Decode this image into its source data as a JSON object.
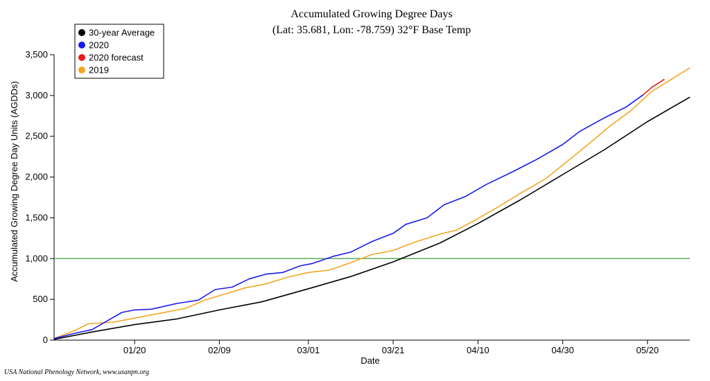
{
  "chart_data": {
    "type": "line",
    "title": "Accumulated Growing Degree Days",
    "subtitle": "(Lat: 35.681, Lon: -78.759) 32°F Base Temp",
    "xlabel": "Date",
    "ylabel": "Accumulated Growing Degree Day Units (AGDDs)",
    "x_range": [
      "2020-01-01",
      "2020-05-30"
    ],
    "ylim": [
      0,
      3500
    ],
    "y_ticks": [
      0,
      500,
      1000,
      1500,
      2000,
      2500,
      3000,
      3500
    ],
    "y_tick_labels": [
      "0",
      "500",
      "1,000",
      "1,500",
      "2,000",
      "2,500",
      "3,000",
      "3,500"
    ],
    "x_ticks": [
      "2020-01-20",
      "2020-02-09",
      "2020-03-01",
      "2020-03-21",
      "2020-04-10",
      "2020-04-30",
      "2020-05-20"
    ],
    "x_tick_labels": [
      "01/20",
      "02/09",
      "03/01",
      "03/21",
      "04/10",
      "04/30",
      "05/20"
    ],
    "threshold_line": {
      "y": 1000,
      "color": "#5cad5c"
    },
    "legend_position": "top-left",
    "series": [
      {
        "name": "30-year Average",
        "color": "#000000",
        "points": [
          [
            "2020-01-01",
            10
          ],
          [
            "2020-01-10",
            100
          ],
          [
            "2020-01-20",
            190
          ],
          [
            "2020-01-30",
            260
          ],
          [
            "2020-02-09",
            370
          ],
          [
            "2020-02-19",
            470
          ],
          [
            "2020-03-01",
            630
          ],
          [
            "2020-03-11",
            780
          ],
          [
            "2020-03-21",
            960
          ],
          [
            "2020-04-01",
            1190
          ],
          [
            "2020-04-10",
            1430
          ],
          [
            "2020-04-20",
            1720
          ],
          [
            "2020-04-30",
            2030
          ],
          [
            "2020-05-10",
            2340
          ],
          [
            "2020-05-20",
            2680
          ],
          [
            "2020-05-30",
            2980
          ]
        ]
      },
      {
        "name": "2020",
        "color": "#1a1af0",
        "points": [
          [
            "2020-01-01",
            20
          ],
          [
            "2020-01-06",
            85
          ],
          [
            "2020-01-10",
            130
          ],
          [
            "2020-01-13",
            220
          ],
          [
            "2020-01-17",
            340
          ],
          [
            "2020-01-20",
            370
          ],
          [
            "2020-01-24",
            380
          ],
          [
            "2020-01-30",
            450
          ],
          [
            "2020-02-04",
            490
          ],
          [
            "2020-02-08",
            620
          ],
          [
            "2020-02-12",
            650
          ],
          [
            "2020-02-16",
            750
          ],
          [
            "2020-02-20",
            810
          ],
          [
            "2020-02-24",
            830
          ],
          [
            "2020-02-28",
            910
          ],
          [
            "2020-03-02",
            940
          ],
          [
            "2020-03-07",
            1030
          ],
          [
            "2020-03-11",
            1080
          ],
          [
            "2020-03-16",
            1210
          ],
          [
            "2020-03-21",
            1310
          ],
          [
            "2020-03-24",
            1420
          ],
          [
            "2020-03-29",
            1500
          ],
          [
            "2020-04-02",
            1660
          ],
          [
            "2020-04-07",
            1760
          ],
          [
            "2020-04-12",
            1910
          ],
          [
            "2020-04-18",
            2060
          ],
          [
            "2020-04-24",
            2220
          ],
          [
            "2020-04-30",
            2400
          ],
          [
            "2020-05-04",
            2560
          ],
          [
            "2020-05-10",
            2730
          ],
          [
            "2020-05-15",
            2860
          ],
          [
            "2020-05-19",
            3010
          ]
        ]
      },
      {
        "name": "2020 forecast",
        "color": "#f01a1a",
        "points": [
          [
            "2020-05-19",
            3010
          ],
          [
            "2020-05-21",
            3100
          ],
          [
            "2020-05-24",
            3200
          ]
        ]
      },
      {
        "name": "2019",
        "color": "#f5a623",
        "points": [
          [
            "2020-01-01",
            20
          ],
          [
            "2020-01-06",
            120
          ],
          [
            "2020-01-09",
            200
          ],
          [
            "2020-01-15",
            220
          ],
          [
            "2020-01-20",
            270
          ],
          [
            "2020-01-26",
            330
          ],
          [
            "2020-02-01",
            390
          ],
          [
            "2020-02-06",
            500
          ],
          [
            "2020-02-10",
            560
          ],
          [
            "2020-02-15",
            640
          ],
          [
            "2020-02-20",
            690
          ],
          [
            "2020-02-25",
            770
          ],
          [
            "2020-03-01",
            830
          ],
          [
            "2020-03-06",
            860
          ],
          [
            "2020-03-11",
            950
          ],
          [
            "2020-03-16",
            1050
          ],
          [
            "2020-03-21",
            1100
          ],
          [
            "2020-03-26",
            1200
          ],
          [
            "2020-04-01",
            1300
          ],
          [
            "2020-04-05",
            1350
          ],
          [
            "2020-04-10",
            1490
          ],
          [
            "2020-04-15",
            1640
          ],
          [
            "2020-04-20",
            1800
          ],
          [
            "2020-04-26",
            1980
          ],
          [
            "2020-05-01",
            2190
          ],
          [
            "2020-05-06",
            2400
          ],
          [
            "2020-05-11",
            2620
          ],
          [
            "2020-05-16",
            2810
          ],
          [
            "2020-05-21",
            3050
          ],
          [
            "2020-05-26",
            3210
          ],
          [
            "2020-05-30",
            3340
          ]
        ]
      }
    ]
  },
  "credit": "USA National Phenology Network, www.usanpn.org"
}
